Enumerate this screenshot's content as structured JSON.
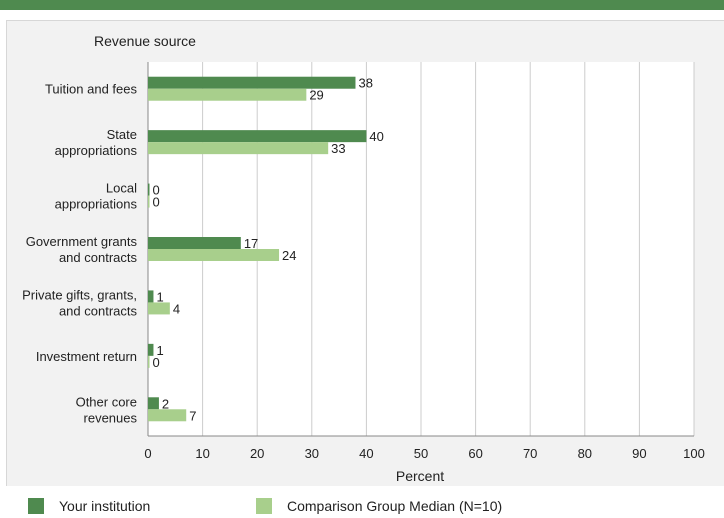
{
  "chart_data": {
    "type": "bar",
    "orientation": "horizontal",
    "title": "",
    "ylabel": "Revenue source",
    "xlabel": "Percent",
    "xlim": [
      0,
      100
    ],
    "xticks": [
      0,
      10,
      20,
      30,
      40,
      50,
      60,
      70,
      80,
      90,
      100
    ],
    "grid": true,
    "legend_position": "bottom",
    "categories": [
      [
        "Tuition and fees"
      ],
      [
        "State",
        "appropriations"
      ],
      [
        "Local",
        "appropriations"
      ],
      [
        "Government grants",
        "and contracts"
      ],
      [
        "Private gifts, grants,",
        "and contracts"
      ],
      [
        "Investment return"
      ],
      [
        "Other core",
        "revenues"
      ]
    ],
    "series": [
      {
        "name": "Your institution",
        "color": "#4f8a4f",
        "values": [
          38,
          40,
          0,
          17,
          1,
          1,
          2
        ]
      },
      {
        "name": "Comparison Group Median (N=10)",
        "color": "#a8cf8c",
        "values": [
          29,
          33,
          0,
          24,
          4,
          0,
          7
        ]
      }
    ]
  }
}
